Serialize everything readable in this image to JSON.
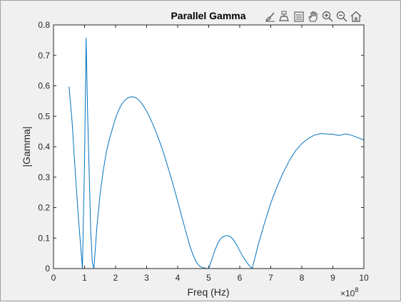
{
  "chart_data": {
    "type": "line",
    "title": "Parallel Gamma",
    "xlabel": "Freq (Hz)",
    "ylabel": "|Gamma|",
    "x_exponent_label": "×10",
    "x_exponent_power": "8",
    "xlim": [
      0,
      10
    ],
    "ylim": [
      0,
      0.8
    ],
    "xticks": [
      "0",
      "1",
      "2",
      "3",
      "4",
      "5",
      "6",
      "7",
      "8",
      "9",
      "10"
    ],
    "yticks": [
      "0",
      "0.1",
      "0.2",
      "0.3",
      "0.4",
      "0.5",
      "0.6",
      "0.7",
      "0.8"
    ],
    "grid": false,
    "line_color": "#0072bd",
    "series": [
      {
        "x": [
          0.5,
          0.6,
          0.7,
          0.8,
          0.9,
          0.93,
          1.0,
          1.05,
          1.1,
          1.2,
          1.25,
          1.3,
          1.4,
          1.5,
          1.6,
          1.7,
          1.8,
          1.9,
          2.0,
          2.1,
          2.2,
          2.3,
          2.4,
          2.5,
          2.6,
          2.7,
          2.8,
          2.9,
          3.0,
          3.1,
          3.2,
          3.3,
          3.4,
          3.5,
          3.6,
          3.7,
          3.8,
          3.9,
          4.0,
          4.1,
          4.2,
          4.3,
          4.4,
          4.5,
          4.6,
          4.7,
          4.8,
          4.9,
          5.0,
          5.1,
          5.2,
          5.3,
          5.4,
          5.5,
          5.6,
          5.7,
          5.8,
          5.9,
          6.0,
          6.1,
          6.2,
          6.3,
          6.4,
          6.5,
          6.6,
          6.7,
          6.8,
          6.9,
          7.0,
          7.2,
          7.4,
          7.6,
          7.8,
          8.0,
          8.2,
          8.4,
          8.6,
          8.8,
          9.0,
          9.2,
          9.4,
          9.6,
          9.8,
          10.0
        ],
        "y": [
          0.598,
          0.48,
          0.32,
          0.17,
          0.04,
          0.0,
          0.35,
          0.757,
          0.5,
          0.12,
          0.02,
          0.0,
          0.14,
          0.245,
          0.32,
          0.38,
          0.425,
          0.46,
          0.495,
          0.52,
          0.54,
          0.553,
          0.561,
          0.564,
          0.563,
          0.558,
          0.548,
          0.534,
          0.517,
          0.497,
          0.474,
          0.449,
          0.422,
          0.393,
          0.362,
          0.329,
          0.294,
          0.258,
          0.221,
          0.183,
          0.145,
          0.108,
          0.072,
          0.043,
          0.021,
          0.008,
          0.003,
          0.001,
          0.0,
          0.03,
          0.06,
          0.085,
          0.1,
          0.107,
          0.108,
          0.105,
          0.094,
          0.078,
          0.058,
          0.04,
          0.024,
          0.01,
          0.0,
          0.04,
          0.08,
          0.115,
          0.15,
          0.183,
          0.215,
          0.268,
          0.315,
          0.355,
          0.387,
          0.41,
          0.427,
          0.438,
          0.443,
          0.442,
          0.441,
          0.437,
          0.442,
          0.438,
          0.43,
          0.422
        ]
      }
    ]
  },
  "toolbar": {
    "icons": [
      "brush-icon",
      "data-tips-icon",
      "legend-icon",
      "pan-icon",
      "zoom-in-icon",
      "zoom-out-icon",
      "home-icon"
    ]
  }
}
